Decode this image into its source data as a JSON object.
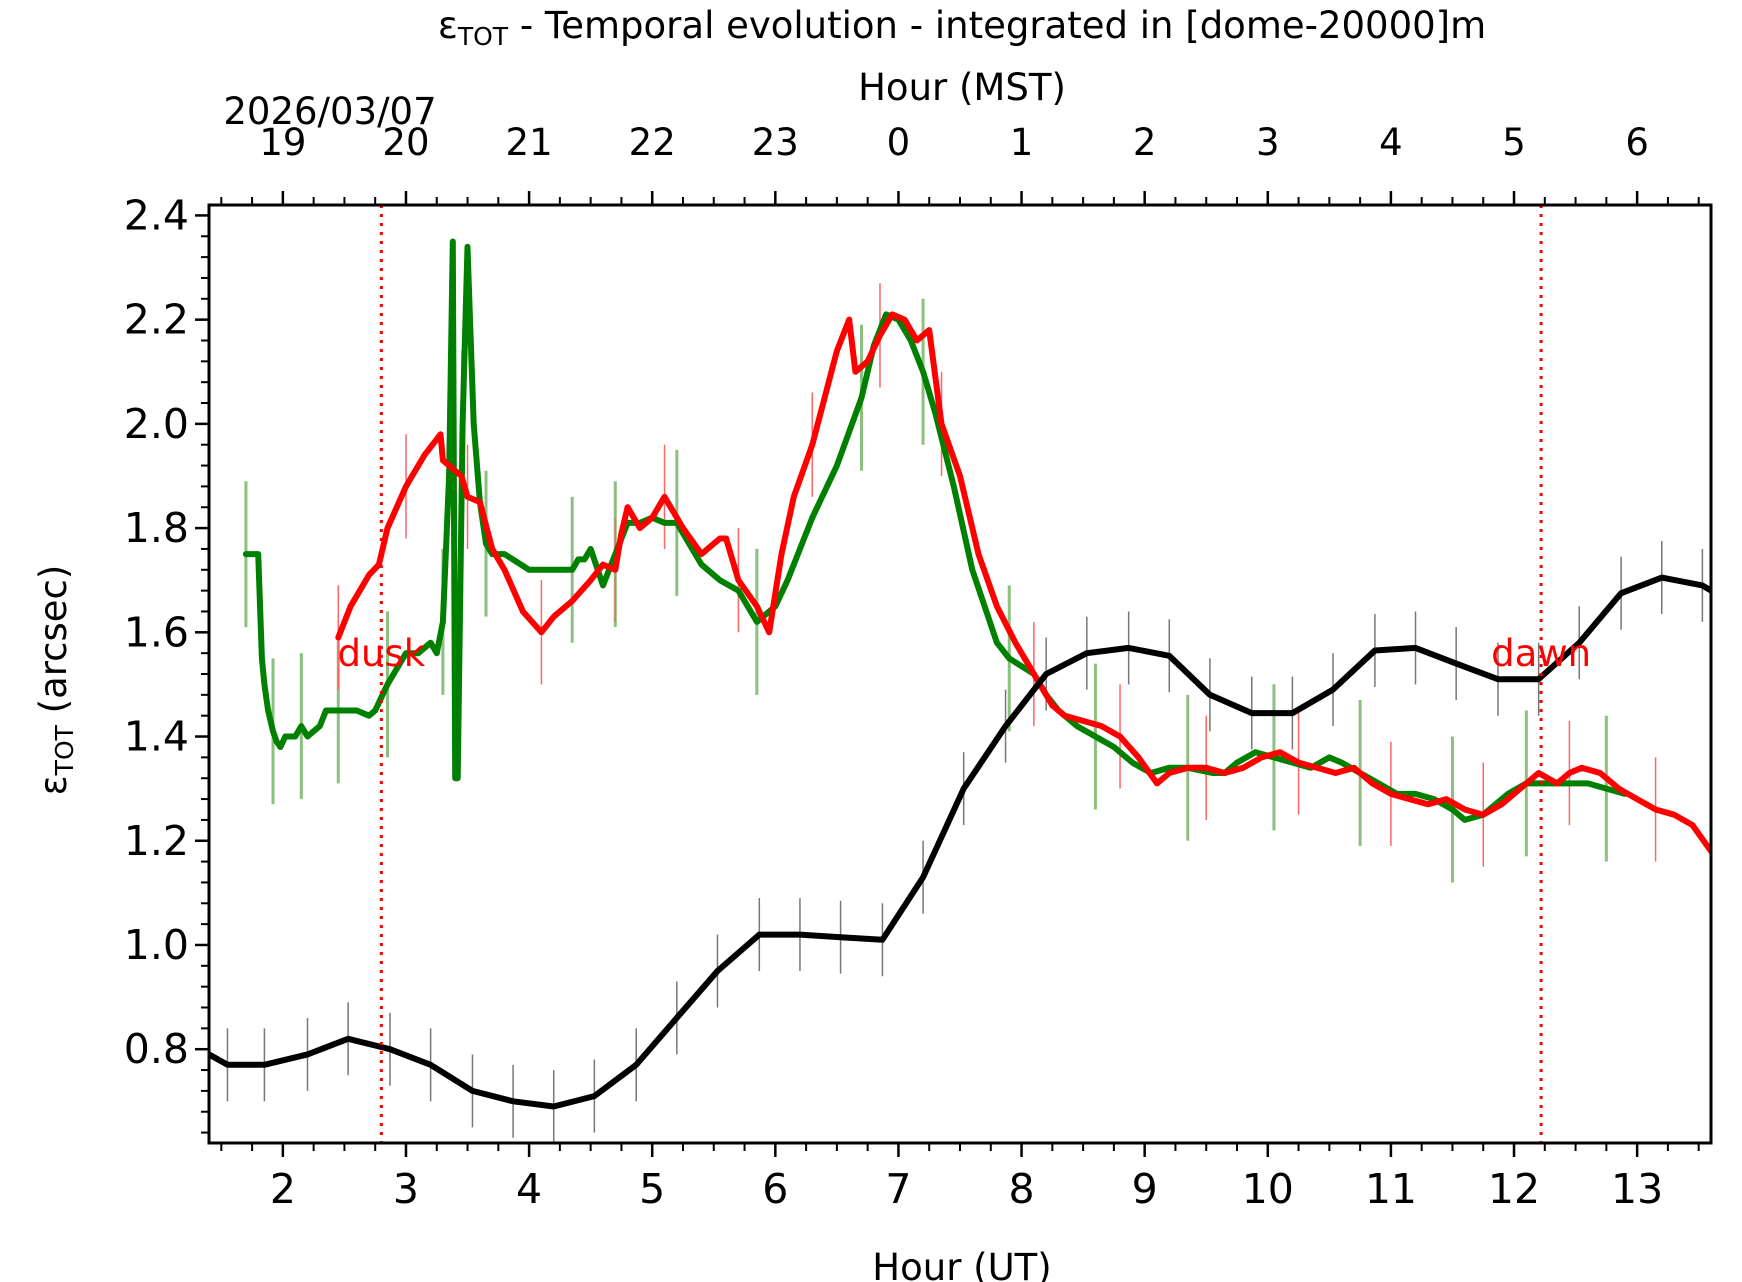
{
  "chart_data": {
    "type": "line",
    "title_prefix": "ε",
    "title_sub": "TOT",
    "title_rest": " - Temporal evolution - integrated in [dome-20000]m",
    "date_label": "2026/03/07",
    "top_axis_label": "Hour (MST)",
    "xlabel": "Hour (UT)",
    "ylabel_prefix": "ε",
    "ylabel_sub": "TOT",
    "ylabel_rest": " (arcsec)",
    "xlim": [
      1.4,
      13.6
    ],
    "ylim": [
      0.62,
      2.42
    ],
    "x_ticks": [
      "2",
      "3",
      "4",
      "5",
      "6",
      "7",
      "8",
      "9",
      "10",
      "11",
      "12",
      "13"
    ],
    "y_ticks": [
      "0.8",
      "1.0",
      "1.2",
      "1.4",
      "1.6",
      "1.8",
      "2.0",
      "2.2",
      "2.4"
    ],
    "top_ticks": [
      "19",
      "20",
      "21",
      "22",
      "23",
      "0",
      "1",
      "2",
      "3",
      "4",
      "5",
      "6"
    ],
    "markers": [
      {
        "label": "dusk",
        "x": 2.8,
        "color": "#ff0000"
      },
      {
        "label": "dawn",
        "x": 12.22,
        "color": "#ff0000"
      }
    ],
    "series": [
      {
        "color": "#008000",
        "x": [
          1.7,
          1.8,
          1.83,
          1.85,
          1.88,
          1.92,
          1.95,
          1.98,
          2.02,
          2.1,
          2.15,
          2.2,
          2.3,
          2.35,
          2.4,
          2.45,
          2.5,
          2.6,
          2.7,
          2.75,
          2.85,
          3.0,
          3.1,
          3.2,
          3.25,
          3.3,
          3.35,
          3.38,
          3.4,
          3.42,
          3.46,
          3.5,
          3.52,
          3.55,
          3.6,
          3.65,
          3.7,
          3.8,
          4.0,
          4.2,
          4.35,
          4.4,
          4.45,
          4.5,
          4.6,
          4.7,
          4.8,
          4.9,
          5.0,
          5.1,
          5.2,
          5.25,
          5.4,
          5.55,
          5.7,
          5.85,
          6.0,
          6.1,
          6.3,
          6.5,
          6.7,
          6.8,
          6.9,
          7.0,
          7.1,
          7.2,
          7.3,
          7.45,
          7.6,
          7.8,
          7.9,
          8.1,
          8.2,
          8.3,
          8.45,
          8.6,
          8.75,
          8.9,
          9.05,
          9.2,
          9.35,
          9.55,
          9.65,
          9.75,
          9.9,
          10.05,
          10.2,
          10.35,
          10.5,
          10.6,
          10.75,
          10.9,
          11.05,
          11.2,
          11.35,
          11.5,
          11.6,
          11.75,
          11.85,
          11.95,
          12.1,
          12.2,
          12.3,
          12.45,
          12.6,
          12.75,
          12.9
        ],
        "y": [
          1.75,
          1.75,
          1.55,
          1.5,
          1.45,
          1.41,
          1.39,
          1.38,
          1.4,
          1.4,
          1.42,
          1.4,
          1.42,
          1.45,
          1.45,
          1.45,
          1.45,
          1.45,
          1.44,
          1.45,
          1.5,
          1.56,
          1.56,
          1.58,
          1.56,
          1.62,
          1.9,
          2.35,
          1.32,
          1.32,
          2.0,
          2.34,
          2.2,
          2.0,
          1.85,
          1.77,
          1.75,
          1.75,
          1.72,
          1.72,
          1.72,
          1.74,
          1.74,
          1.76,
          1.69,
          1.75,
          1.81,
          1.81,
          1.82,
          1.81,
          1.81,
          1.79,
          1.73,
          1.7,
          1.68,
          1.62,
          1.65,
          1.7,
          1.82,
          1.92,
          2.05,
          2.15,
          2.21,
          2.2,
          2.16,
          2.1,
          2.02,
          1.88,
          1.72,
          1.58,
          1.55,
          1.52,
          1.48,
          1.45,
          1.42,
          1.4,
          1.38,
          1.35,
          1.33,
          1.34,
          1.34,
          1.33,
          1.33,
          1.35,
          1.37,
          1.36,
          1.35,
          1.34,
          1.36,
          1.35,
          1.33,
          1.31,
          1.29,
          1.29,
          1.28,
          1.26,
          1.24,
          1.25,
          1.27,
          1.29,
          1.31,
          1.31,
          1.31,
          1.31,
          1.31,
          1.3,
          1.29
        ]
      },
      {
        "color": "#ff0000",
        "x": [
          2.45,
          2.55,
          2.7,
          2.78,
          2.85,
          3.0,
          3.15,
          3.28,
          3.3,
          3.45,
          3.5,
          3.6,
          3.7,
          3.8,
          3.95,
          4.1,
          4.2,
          4.35,
          4.5,
          4.6,
          4.7,
          4.75,
          4.8,
          4.9,
          5.0,
          5.1,
          5.25,
          5.4,
          5.55,
          5.6,
          5.7,
          5.85,
          5.95,
          6.05,
          6.15,
          6.3,
          6.5,
          6.6,
          6.65,
          6.75,
          6.85,
          6.95,
          7.05,
          7.15,
          7.25,
          7.35,
          7.5,
          7.65,
          7.8,
          7.95,
          8.1,
          8.25,
          8.35,
          8.5,
          8.65,
          8.8,
          8.95,
          9.1,
          9.2,
          9.35,
          9.5,
          9.65,
          9.8,
          9.95,
          10.1,
          10.25,
          10.4,
          10.55,
          10.7,
          10.85,
          11.0,
          11.15,
          11.3,
          11.45,
          11.6,
          11.75,
          11.9,
          12.05,
          12.2,
          12.35,
          12.45,
          12.55,
          12.7,
          12.85,
          13.0,
          13.15,
          13.3,
          13.45,
          13.6
        ],
        "y": [
          1.59,
          1.65,
          1.71,
          1.73,
          1.8,
          1.88,
          1.94,
          1.98,
          1.93,
          1.9,
          1.86,
          1.85,
          1.76,
          1.72,
          1.64,
          1.6,
          1.63,
          1.66,
          1.7,
          1.73,
          1.72,
          1.79,
          1.84,
          1.8,
          1.82,
          1.86,
          1.8,
          1.75,
          1.78,
          1.78,
          1.7,
          1.65,
          1.6,
          1.75,
          1.86,
          1.96,
          2.14,
          2.2,
          2.1,
          2.12,
          2.17,
          2.21,
          2.2,
          2.16,
          2.18,
          2.0,
          1.9,
          1.75,
          1.65,
          1.58,
          1.52,
          1.46,
          1.44,
          1.43,
          1.42,
          1.4,
          1.36,
          1.31,
          1.33,
          1.34,
          1.34,
          1.33,
          1.34,
          1.36,
          1.37,
          1.35,
          1.34,
          1.33,
          1.34,
          1.31,
          1.29,
          1.28,
          1.27,
          1.28,
          1.26,
          1.25,
          1.27,
          1.3,
          1.33,
          1.31,
          1.33,
          1.34,
          1.33,
          1.3,
          1.28,
          1.26,
          1.25,
          1.23,
          1.18
        ]
      },
      {
        "color": "#000000",
        "x": [
          1.4,
          1.55,
          1.85,
          2.2,
          2.53,
          2.87,
          3.2,
          3.54,
          3.87,
          4.2,
          4.53,
          4.87,
          5.2,
          5.53,
          5.87,
          6.2,
          6.53,
          6.87,
          7.2,
          7.53,
          7.87,
          8.2,
          8.53,
          8.87,
          9.2,
          9.53,
          9.87,
          10.2,
          10.53,
          10.87,
          11.2,
          11.53,
          11.87,
          12.2,
          12.53,
          12.87,
          13.2,
          13.53,
          13.6
        ],
        "y": [
          0.79,
          0.77,
          0.77,
          0.79,
          0.82,
          0.8,
          0.77,
          0.72,
          0.7,
          0.69,
          0.71,
          0.77,
          0.86,
          0.95,
          1.02,
          1.02,
          1.015,
          1.01,
          1.13,
          1.3,
          1.42,
          1.52,
          1.56,
          1.57,
          1.555,
          1.48,
          1.445,
          1.445,
          1.49,
          1.565,
          1.57,
          1.54,
          1.51,
          1.51,
          1.58,
          1.675,
          1.705,
          1.69,
          1.68
        ]
      }
    ]
  }
}
